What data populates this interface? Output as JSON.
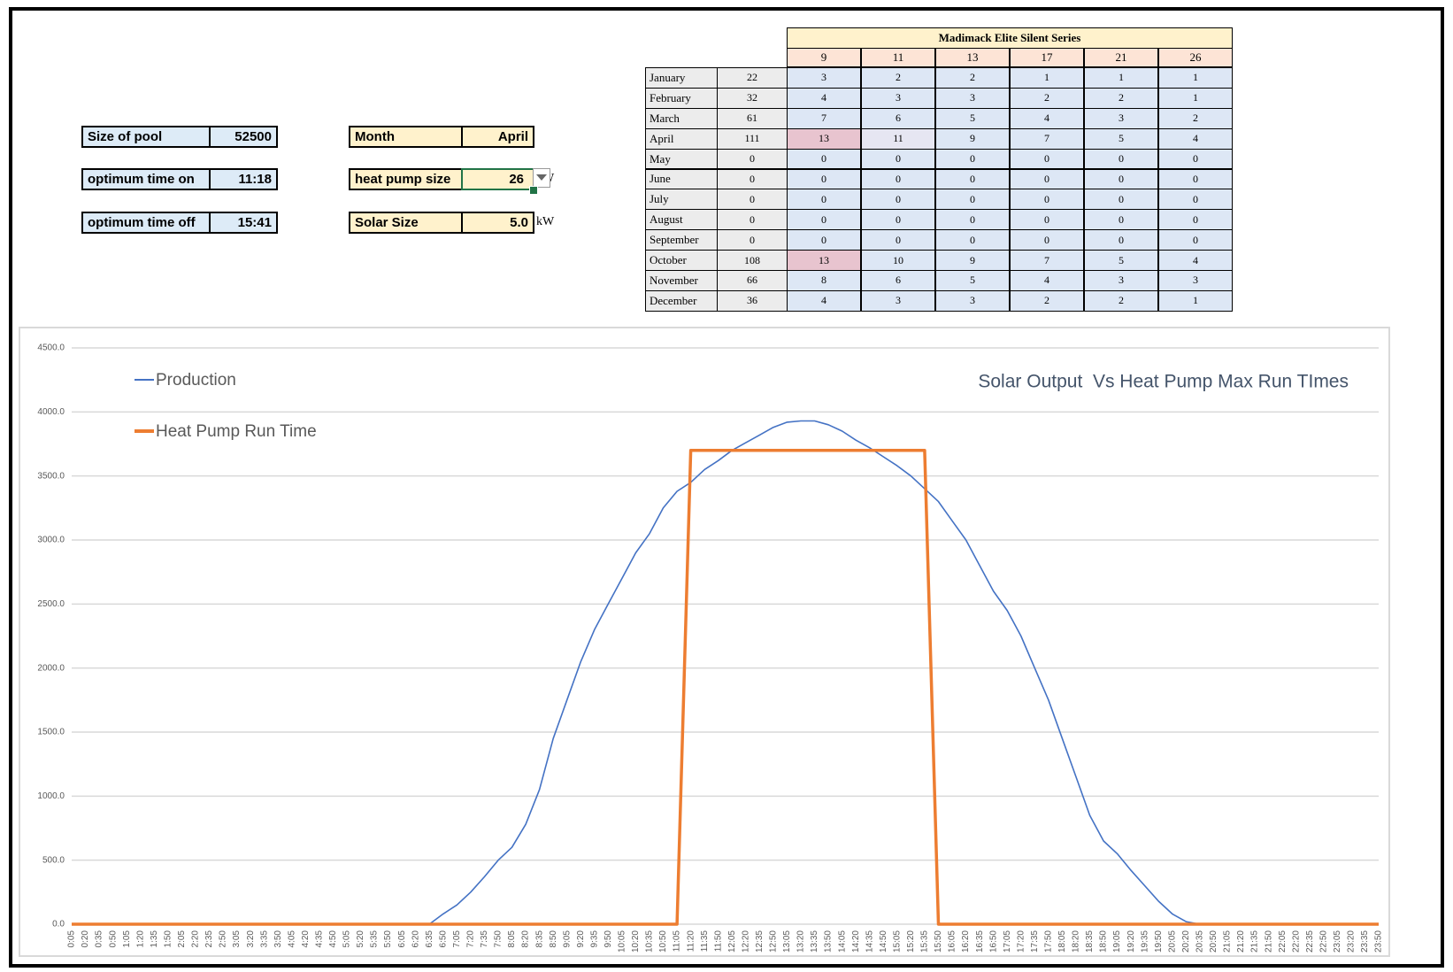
{
  "inputs_left": [
    {
      "label": "Size of pool",
      "value": 52500
    },
    {
      "label": "optimum time on",
      "value": "11:18"
    },
    {
      "label": "optimum time off",
      "value": "15:41"
    }
  ],
  "inputs_right": [
    {
      "label": "Month",
      "value": "April"
    },
    {
      "label": "heat pump size",
      "value": 26,
      "unit": "kW"
    },
    {
      "label": "Solar Size",
      "value": "5.0",
      "unit": "kW"
    }
  ],
  "table": {
    "title": "Madimack Elite Silent Series",
    "columns": [
      9,
      11,
      13,
      17,
      21,
      26
    ],
    "rows": [
      {
        "month": "January",
        "total": 22,
        "values": [
          3,
          2,
          2,
          1,
          1,
          1
        ]
      },
      {
        "month": "February",
        "total": 32,
        "values": [
          4,
          3,
          3,
          2,
          2,
          1
        ]
      },
      {
        "month": "March",
        "total": 61,
        "values": [
          7,
          6,
          5,
          4,
          3,
          2
        ]
      },
      {
        "month": "April",
        "total": 111,
        "values": [
          13,
          11,
          9,
          7,
          5,
          4
        ]
      },
      {
        "month": "May",
        "total": 0,
        "values": [
          0,
          0,
          0,
          0,
          0,
          0
        ]
      },
      {
        "month": "June",
        "total": 0,
        "values": [
          0,
          0,
          0,
          0,
          0,
          0
        ]
      },
      {
        "month": "July",
        "total": 0,
        "values": [
          0,
          0,
          0,
          0,
          0,
          0
        ]
      },
      {
        "month": "August",
        "total": 0,
        "values": [
          0,
          0,
          0,
          0,
          0,
          0
        ]
      },
      {
        "month": "September",
        "total": 0,
        "values": [
          0,
          0,
          0,
          0,
          0,
          0
        ]
      },
      {
        "month": "October",
        "total": 108,
        "values": [
          13,
          10,
          9,
          7,
          5,
          4
        ]
      },
      {
        "month": "November",
        "total": 66,
        "values": [
          8,
          6,
          5,
          4,
          3,
          3
        ]
      },
      {
        "month": "December",
        "total": 36,
        "values": [
          4,
          3,
          3,
          2,
          2,
          1
        ]
      }
    ]
  },
  "chart_data": {
    "type": "line",
    "title": "Solar Output  Vs Heat Pump Max Run TImes",
    "grid": true,
    "legend": "top-left",
    "categories": [
      "0:05",
      "0:20",
      "0:35",
      "0:50",
      "1:05",
      "1:20",
      "1:35",
      "1:50",
      "2:05",
      "2:20",
      "2:35",
      "2:50",
      "3:05",
      "3:20",
      "3:35",
      "3:50",
      "4:05",
      "4:20",
      "4:35",
      "4:50",
      "5:05",
      "5:20",
      "5:35",
      "5:50",
      "6:05",
      "6:20",
      "6:35",
      "6:50",
      "7:05",
      "7:20",
      "7:35",
      "7:50",
      "8:05",
      "8:20",
      "8:35",
      "8:50",
      "9:05",
      "9:20",
      "9:35",
      "9:50",
      "10:05",
      "10:20",
      "10:35",
      "10:50",
      "11:05",
      "11:20",
      "11:35",
      "11:50",
      "12:05",
      "12:20",
      "12:35",
      "12:50",
      "13:05",
      "13:20",
      "13:35",
      "13:50",
      "14:05",
      "14:20",
      "14:35",
      "14:50",
      "15:05",
      "15:20",
      "15:35",
      "15:50",
      "16:05",
      "16:20",
      "16:35",
      "16:50",
      "17:05",
      "17:20",
      "17:35",
      "17:50",
      "18:05",
      "18:20",
      "18:35",
      "18:50",
      "19:05",
      "19:20",
      "19:35",
      "19:50",
      "20:05",
      "20:20",
      "20:35",
      "20:50",
      "21:05",
      "21:20",
      "21:35",
      "21:50",
      "22:05",
      "22:20",
      "22:35",
      "22:50",
      "23:05",
      "23:20",
      "23:35",
      "23:50"
    ],
    "series": [
      {
        "name": "Production",
        "color": "#4472c4",
        "values": [
          0,
          0,
          0,
          0,
          0,
          0,
          0,
          0,
          0,
          0,
          0,
          0,
          0,
          0,
          0,
          0,
          0,
          0,
          0,
          0,
          0,
          0,
          0,
          0,
          0,
          0,
          0,
          80,
          150,
          250,
          370,
          500,
          600,
          780,
          1050,
          1450,
          1750,
          2050,
          2300,
          2500,
          2700,
          2900,
          3050,
          3250,
          3380,
          3450,
          3550,
          3620,
          3700,
          3760,
          3820,
          3880,
          3920,
          3930,
          3930,
          3900,
          3850,
          3780,
          3720,
          3650,
          3580,
          3500,
          3400,
          3300,
          3150,
          3000,
          2800,
          2600,
          2450,
          2250,
          2000,
          1750,
          1450,
          1150,
          850,
          650,
          550,
          420,
          300,
          180,
          80,
          20,
          0,
          0,
          0,
          0,
          0,
          0,
          0,
          0,
          0,
          0,
          0,
          0,
          0,
          0
        ]
      },
      {
        "name": "Heat Pump Run Time",
        "color": "#ed7d31",
        "values": [
          0,
          0,
          0,
          0,
          0,
          0,
          0,
          0,
          0,
          0,
          0,
          0,
          0,
          0,
          0,
          0,
          0,
          0,
          0,
          0,
          0,
          0,
          0,
          0,
          0,
          0,
          0,
          0,
          0,
          0,
          0,
          0,
          0,
          0,
          0,
          0,
          0,
          0,
          0,
          0,
          0,
          0,
          0,
          0,
          0,
          3700,
          3700,
          3700,
          3700,
          3700,
          3700,
          3700,
          3700,
          3700,
          3700,
          3700,
          3700,
          3700,
          3700,
          3700,
          3700,
          3700,
          3700,
          0,
          0,
          0,
          0,
          0,
          0,
          0,
          0,
          0,
          0,
          0,
          0,
          0,
          0,
          0,
          0,
          0,
          0,
          0,
          0,
          0,
          0,
          0,
          0,
          0,
          0,
          0,
          0,
          0,
          0,
          0,
          0,
          0
        ]
      }
    ],
    "ylim": [
      0,
      4500
    ],
    "yticks": [
      {
        "value": 0,
        "label": "0.0"
      },
      {
        "value": 500,
        "label": "500.0"
      },
      {
        "value": 1000,
        "label": "1000.0"
      },
      {
        "value": 1500,
        "label": "1500.0"
      },
      {
        "value": 2000,
        "label": "2000.0"
      },
      {
        "value": 2500,
        "label": "2500.0"
      },
      {
        "value": 3000,
        "label": "3000.0"
      },
      {
        "value": 3500,
        "label": "3500.0"
      },
      {
        "value": 4000,
        "label": "4000.0"
      },
      {
        "value": 4500,
        "label": "4500.0"
      }
    ]
  }
}
